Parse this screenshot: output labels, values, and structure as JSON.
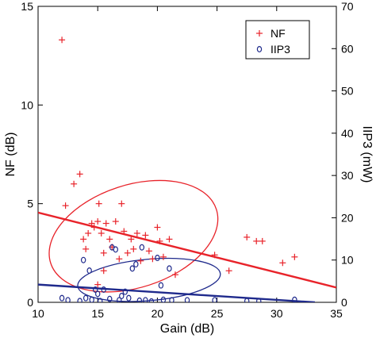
{
  "chart_data": {
    "type": "scatter",
    "xlabel": "Gain (dB)",
    "ylabel_left": "NF (dB)",
    "ylabel_right": "IIP3 (mW)",
    "xlim": [
      10,
      35
    ],
    "ylim_left": [
      0,
      15
    ],
    "ylim_right": [
      0,
      70
    ],
    "x_ticks": [
      "10",
      "15",
      "20",
      "25",
      "30",
      "35"
    ],
    "y_left_ticks": [
      "0",
      "5",
      "10",
      "15"
    ],
    "y_right_ticks": [
      "0",
      "10",
      "20",
      "30",
      "40",
      "50",
      "60",
      "70"
    ],
    "legend_position": "top-right",
    "colors": {
      "NF": "#e8232a",
      "IIP3": "#1f2a8c"
    },
    "series": [
      {
        "name": "NF",
        "marker": "+",
        "axis": "left",
        "points": [
          [
            12.0,
            13.3
          ],
          [
            12.3,
            4.9
          ],
          [
            13.0,
            6.0
          ],
          [
            13.5,
            6.5
          ],
          [
            13.8,
            3.2
          ],
          [
            14.0,
            2.7
          ],
          [
            14.2,
            3.5
          ],
          [
            14.5,
            4.0
          ],
          [
            14.7,
            3.8
          ],
          [
            15.0,
            4.1
          ],
          [
            15.1,
            5.0
          ],
          [
            15.3,
            3.5
          ],
          [
            15.5,
            2.5
          ],
          [
            15.7,
            4.0
          ],
          [
            16.0,
            3.2
          ],
          [
            16.2,
            2.8
          ],
          [
            16.5,
            4.1
          ],
          [
            16.8,
            2.2
          ],
          [
            17.0,
            5.0
          ],
          [
            17.2,
            3.6
          ],
          [
            17.5,
            2.5
          ],
          [
            17.8,
            3.2
          ],
          [
            18.0,
            2.7
          ],
          [
            18.3,
            3.5
          ],
          [
            18.6,
            2.1
          ],
          [
            19.0,
            3.4
          ],
          [
            19.3,
            2.6
          ],
          [
            19.6,
            2.2
          ],
          [
            20.0,
            3.8
          ],
          [
            20.2,
            3.1
          ],
          [
            20.5,
            2.3
          ],
          [
            21.0,
            3.2
          ],
          [
            21.5,
            1.4
          ],
          [
            24.8,
            2.4
          ],
          [
            26.0,
            1.6
          ],
          [
            27.5,
            3.3
          ],
          [
            28.3,
            3.1
          ],
          [
            28.8,
            3.1
          ],
          [
            30.5,
            2.0
          ],
          [
            31.5,
            2.3
          ],
          [
            15.0,
            0.9
          ],
          [
            15.5,
            1.6
          ]
        ]
      },
      {
        "name": "IIP3",
        "marker": "o",
        "axis": "right",
        "points": [
          [
            12.0,
            1.0
          ],
          [
            12.5,
            0.5
          ],
          [
            13.5,
            0.3
          ],
          [
            13.8,
            10.0
          ],
          [
            14.0,
            1.0
          ],
          [
            14.3,
            7.5
          ],
          [
            14.5,
            0.6
          ],
          [
            14.8,
            3.0
          ],
          [
            15.0,
            2.0
          ],
          [
            15.2,
            0.3
          ],
          [
            15.5,
            3.0
          ],
          [
            16.0,
            0.8
          ],
          [
            16.2,
            13.0
          ],
          [
            16.5,
            12.5
          ],
          [
            16.8,
            0.5
          ],
          [
            17.0,
            1.5
          ],
          [
            17.3,
            2.5
          ],
          [
            17.6,
            1.0
          ],
          [
            17.9,
            8.0
          ],
          [
            18.2,
            9.0
          ],
          [
            18.5,
            0.4
          ],
          [
            18.7,
            13.0
          ],
          [
            19.0,
            0.5
          ],
          [
            19.5,
            0.2
          ],
          [
            20.0,
            10.5
          ],
          [
            20.3,
            4.0
          ],
          [
            20.5,
            0.6
          ],
          [
            21.0,
            8.0
          ],
          [
            21.2,
            0.5
          ],
          [
            22.5,
            0.5
          ],
          [
            24.8,
            0.5
          ],
          [
            27.5,
            0.3
          ],
          [
            28.5,
            0.3
          ],
          [
            31.5,
            0.6
          ]
        ]
      }
    ],
    "fit_lines": [
      {
        "name": "NF",
        "axis": "left",
        "x": [
          10,
          35
        ],
        "y": [
          4.55,
          0.75
        ]
      },
      {
        "name": "IIP3",
        "axis": "right",
        "x": [
          10,
          33.2
        ],
        "y": [
          4.2,
          0.0
        ]
      }
    ],
    "ellipses": [
      {
        "name": "NF",
        "axis": "left",
        "cx": 18.0,
        "cy": 3.35,
        "rx": 7.3,
        "ry": 2.6,
        "rotation_deg": 18
      },
      {
        "name": "IIP3",
        "axis": "right",
        "cx": 19.3,
        "cy": 5.3,
        "rx": 6.0,
        "ry": 4.9,
        "rotation_deg": 5
      }
    ]
  }
}
